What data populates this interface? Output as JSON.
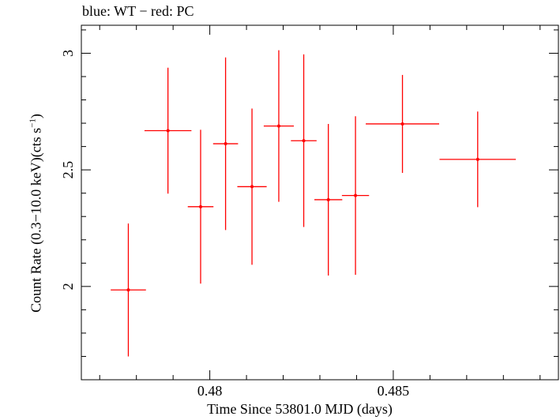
{
  "chart_data": {
    "type": "scatter",
    "title": "blue: WT − red: PC",
    "xlabel": "Time Since 53801.0 MJD (days)",
    "ylabel_main": "Count Rate (0.3−10.0 keV)(cts s",
    "ylabel_sup": "−1",
    "ylabel_end": ")",
    "xlim": [
      0.4765,
      0.4895
    ],
    "ylim": [
      1.6,
      3.12
    ],
    "xticks": [
      {
        "value": 0.48,
        "label": "0.48"
      },
      {
        "value": 0.485,
        "label": "0.485"
      }
    ],
    "yticks": [
      {
        "value": 2,
        "label": "2"
      },
      {
        "value": 2.5,
        "label": "2.5"
      },
      {
        "value": 3,
        "label": "3"
      }
    ],
    "x_minor_step": 0.001,
    "y_minor_step": 0.1,
    "series": [
      {
        "name": "PC",
        "color": "#ff0000",
        "points": [
          {
            "x": 0.47778,
            "xerr": 0.00048,
            "y": 1.985,
            "yerr_lo": 0.285,
            "yerr_hi": 0.285
          },
          {
            "x": 0.47886,
            "xerr": 0.00064,
            "y": 2.668,
            "yerr_lo": 0.27,
            "yerr_hi": 0.27
          },
          {
            "x": 0.47975,
            "xerr": 0.00035,
            "y": 2.342,
            "yerr_lo": 0.33,
            "yerr_hi": 0.33
          },
          {
            "x": 0.48043,
            "xerr": 0.00034,
            "y": 2.612,
            "yerr_lo": 0.37,
            "yerr_hi": 0.37
          },
          {
            "x": 0.48115,
            "xerr": 0.0004,
            "y": 2.428,
            "yerr_lo": 0.335,
            "yerr_hi": 0.335
          },
          {
            "x": 0.48188,
            "xerr": 0.00041,
            "y": 2.688,
            "yerr_lo": 0.325,
            "yerr_hi": 0.325
          },
          {
            "x": 0.48256,
            "xerr": 0.00035,
            "y": 2.625,
            "yerr_lo": 0.37,
            "yerr_hi": 0.37
          },
          {
            "x": 0.48323,
            "xerr": 0.00038,
            "y": 2.372,
            "yerr_lo": 0.325,
            "yerr_hi": 0.325
          },
          {
            "x": 0.48397,
            "xerr": 0.00037,
            "y": 2.39,
            "yerr_lo": 0.34,
            "yerr_hi": 0.34
          },
          {
            "x": 0.48525,
            "xerr": 0.001,
            "y": 2.697,
            "yerr_lo": 0.21,
            "yerr_hi": 0.21
          },
          {
            "x": 0.4873,
            "xerr": 0.00104,
            "y": 2.545,
            "yerr_lo": 0.205,
            "yerr_hi": 0.205
          }
        ]
      }
    ]
  }
}
